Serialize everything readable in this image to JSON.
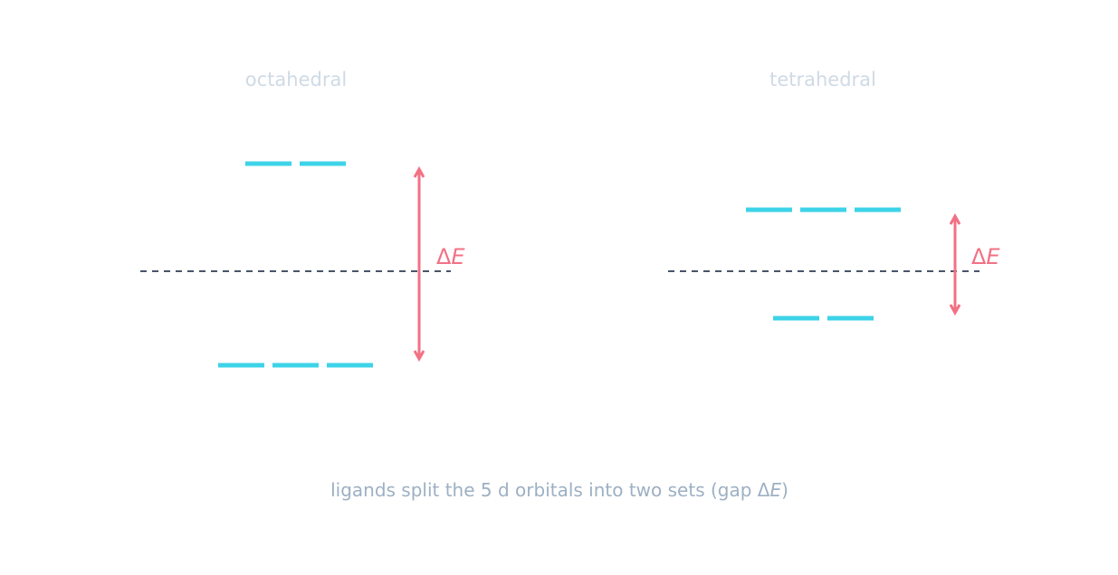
{
  "panels": [
    {
      "title": "octahedral",
      "delta": {
        "symbol": "Δ",
        "variable": "E"
      }
    },
    {
      "title": "tetrahedral",
      "delta": {
        "symbol": "Δ",
        "variable": "E"
      }
    }
  ],
  "caption": {
    "before": "ligands split the 5 d orbitals into two sets (gap Δ",
    "italic": "E",
    "after": ")"
  }
}
